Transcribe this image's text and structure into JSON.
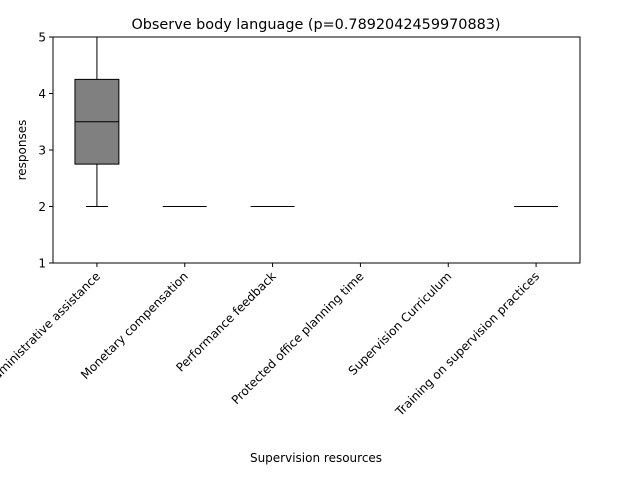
{
  "chart_data": {
    "type": "box",
    "title": "Observe body language (p=0.7892042459970883)",
    "xlabel": "Supervision resources",
    "ylabel": "responses",
    "ylim": [
      1,
      5
    ],
    "yticks": [
      1,
      2,
      3,
      4,
      5
    ],
    "grid": false,
    "box_color": "#808080",
    "categories": [
      "Administrative assistance",
      "Monetary compensation",
      "Performance feedback",
      "Protected office planning time",
      "Supervision Curriculum",
      "Training on supervision practices"
    ],
    "boxes": [
      {
        "whislo": 2,
        "q1": 2.75,
        "median": 3.5,
        "q3": 4.25,
        "whishi": 5
      },
      {
        "whislo": 2,
        "q1": 2,
        "median": 2,
        "q3": 2,
        "whishi": 2
      },
      {
        "whislo": 2,
        "q1": 2,
        "median": 2,
        "q3": 2,
        "whishi": 2
      },
      {
        "whislo": 5,
        "q1": 5,
        "median": 5,
        "q3": 5,
        "whishi": 5
      },
      {
        "whislo": 5,
        "q1": 5,
        "median": 5,
        "q3": 5,
        "whishi": 5
      },
      {
        "whislo": 2,
        "q1": 2,
        "median": 2,
        "q3": 2,
        "whishi": 2
      }
    ]
  }
}
